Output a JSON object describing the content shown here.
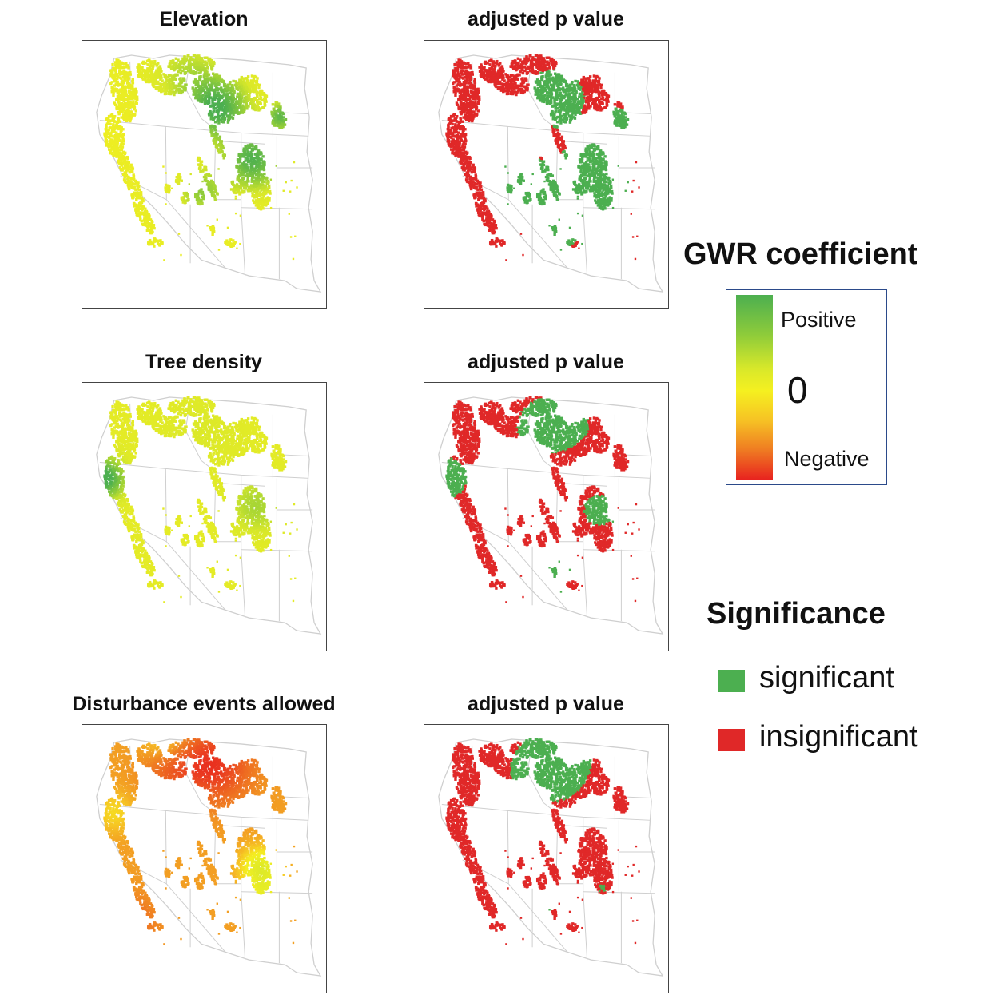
{
  "panels": [
    {
      "title": "Elevation",
      "mode": "coef",
      "scheme": "elev"
    },
    {
      "title": "adjusted p value",
      "mode": "sig",
      "scheme": "elev"
    },
    {
      "title": "Tree density",
      "mode": "coef",
      "scheme": "tree"
    },
    {
      "title": "adjusted p value",
      "mode": "sig",
      "scheme": "tree"
    },
    {
      "title": "Disturbance events allowed",
      "mode": "coef",
      "scheme": "dist"
    },
    {
      "title": "adjusted p value",
      "mode": "sig",
      "scheme": "dist"
    }
  ],
  "legend": {
    "coefficient_title": "GWR coefficient",
    "positive_label": "Positive",
    "zero_label": "0",
    "negative_label": "Negative",
    "significance_title": "Significance",
    "significant_label": "significant",
    "insignificant_label": "insignificant"
  },
  "colors": {
    "significant": "#4caf50",
    "insignificant": "#e02828",
    "positive": "#4caf50",
    "zero": "#f5f020",
    "negative": "#e8231f",
    "state_lines": "#cfcfcf"
  }
}
